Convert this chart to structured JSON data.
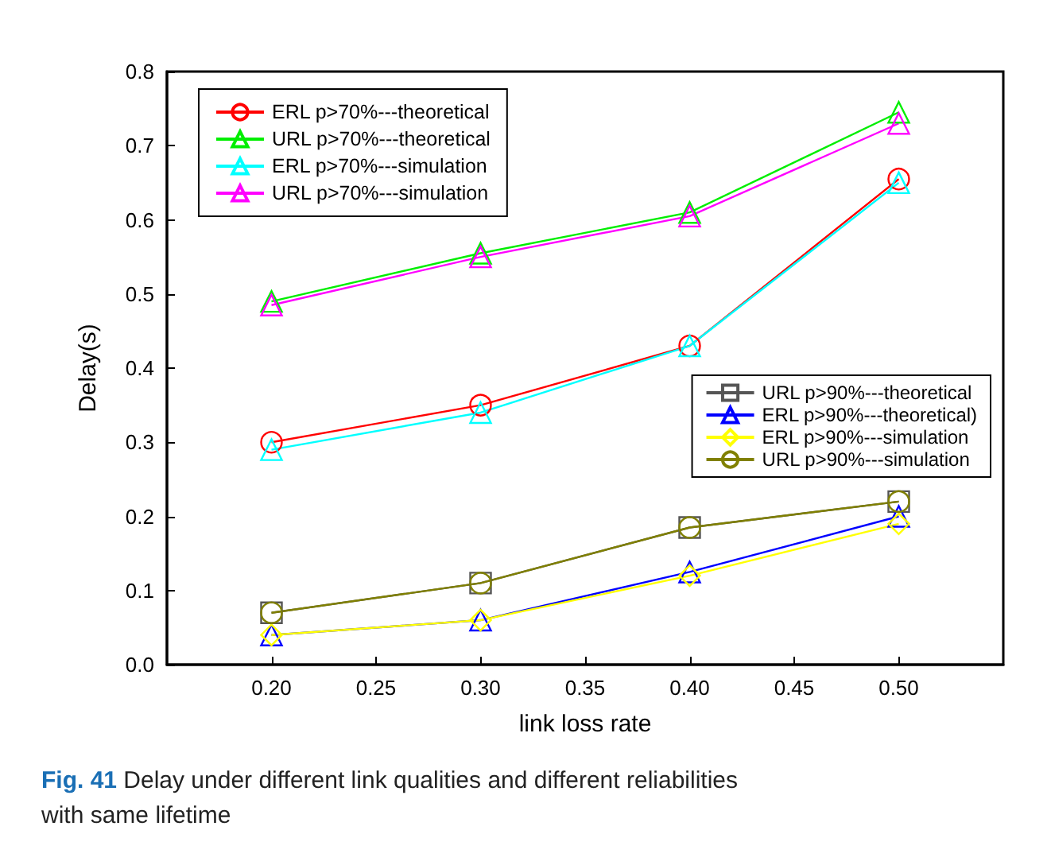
{
  "chart_data": {
    "type": "line",
    "xlabel": "link loss rate",
    "ylabel": "Delay(s)",
    "annotations": [
      "Fig. 41 Delay under different link qualities and different reliabilities with same lifetime"
    ],
    "xlim": [
      0.15,
      0.55
    ],
    "ylim": [
      0,
      0.8
    ],
    "xticks": [
      {
        "value": 0.2,
        "label": "0.20"
      },
      {
        "value": 0.25,
        "label": "0.25"
      },
      {
        "value": 0.3,
        "label": "0.30"
      },
      {
        "value": 0.35,
        "label": "0.35"
      },
      {
        "value": 0.4,
        "label": "0.40"
      },
      {
        "value": 0.45,
        "label": "0.45"
      },
      {
        "value": 0.5,
        "label": "0.50"
      }
    ],
    "yticks": [
      {
        "value": 0,
        "label": "0.0"
      },
      0.1,
      0.2,
      0.3,
      0.4,
      0.5,
      0.6,
      0.7,
      0.8
    ],
    "x": [
      0.2,
      0.3,
      0.4,
      0.5
    ],
    "grid": false,
    "legend": "top left",
    "line_style": "solid",
    "series": [
      {
        "name": "ERL p>70%---theoretical",
        "color": "#ff0000",
        "marker": "circle",
        "values": [
          0.3,
          0.35,
          0.43,
          0.655
        ]
      },
      {
        "name": "URL p>70%---theoretical",
        "color": "#00ee00",
        "marker": "triangle",
        "values": [
          0.49,
          0.555,
          0.61,
          0.745
        ]
      },
      {
        "name": "ERL p>70%---simulation",
        "color": "#00ffff",
        "marker": "triangle",
        "values": [
          0.29,
          0.34,
          0.43,
          0.65
        ]
      },
      {
        "name": "URL p>70%---simulation",
        "color": "#ff00ff",
        "marker": "triangle",
        "values": [
          0.485,
          0.55,
          0.605,
          0.73
        ]
      },
      {
        "name": "URL p>90%---theoretical",
        "color": "#555555",
        "marker": "square",
        "values": [
          0.07,
          0.11,
          0.185,
          0.22
        ]
      },
      {
        "name": "ERL p>90%---theoretical)",
        "color": "#0000ff",
        "marker": "triangle",
        "values": [
          0.04,
          0.06,
          0.125,
          0.2
        ]
      },
      {
        "name": "ERL p>90%---simulation",
        "color": "#ffff00",
        "marker": "diamond",
        "values": [
          0.04,
          0.06,
          0.12,
          0.19
        ]
      },
      {
        "name": "URL p>90%---simulation",
        "color": "#808000",
        "marker": "circle",
        "values": [
          0.07,
          0.11,
          0.185,
          0.22
        ]
      }
    ]
  }
}
